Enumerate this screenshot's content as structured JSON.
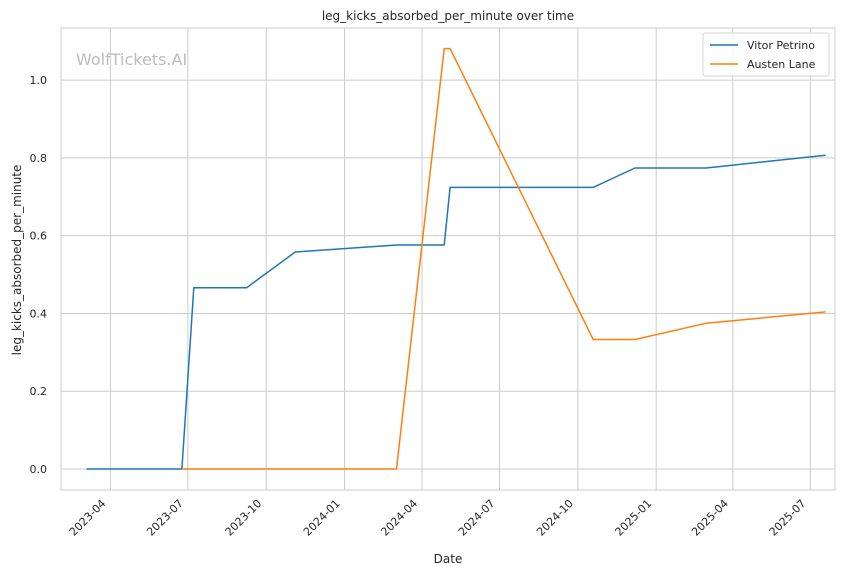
{
  "chart_data": {
    "type": "line",
    "title": "leg_kicks_absorbed_per_minute over time",
    "xlabel": "Date",
    "ylabel": "leg_kicks_absorbed_per_minute",
    "watermark": "WolfTickets.AI",
    "grid": true,
    "legend_position": "top-right",
    "x_range": [
      "2023-02-02",
      "2025-07-30"
    ],
    "ylim": [
      -0.054,
      1.134
    ],
    "x_ticks": [
      "2023-04",
      "2023-07",
      "2023-10",
      "2024-01",
      "2024-04",
      "2024-07",
      "2024-10",
      "2025-01",
      "2025-04",
      "2025-07"
    ],
    "y_ticks": [
      "0.0",
      "0.2",
      "0.4",
      "0.6",
      "0.8",
      "1.0"
    ],
    "series": [
      {
        "name": "Vitor Petrino",
        "color": "#1f77b4",
        "points": [
          {
            "x": "2023-03-04",
            "y": 0.0
          },
          {
            "x": "2023-06-24",
            "y": 0.0
          },
          {
            "x": "2023-07-08",
            "y": 0.466
          },
          {
            "x": "2023-09-08",
            "y": 0.466
          },
          {
            "x": "2023-11-04",
            "y": 0.558
          },
          {
            "x": "2024-03-02",
            "y": 0.576
          },
          {
            "x": "2024-04-27",
            "y": 0.576
          },
          {
            "x": "2024-05-04",
            "y": 0.724
          },
          {
            "x": "2024-10-19",
            "y": 0.724
          },
          {
            "x": "2024-12-07",
            "y": 0.774
          },
          {
            "x": "2025-03-01",
            "y": 0.774
          },
          {
            "x": "2025-07-19",
            "y": 0.807
          }
        ]
      },
      {
        "name": "Austen Lane",
        "color": "#ff7f0e",
        "points": [
          {
            "x": "2023-06-24",
            "y": 0.0
          },
          {
            "x": "2024-03-02",
            "y": 0.0
          },
          {
            "x": "2024-04-27",
            "y": 1.081
          },
          {
            "x": "2024-05-04",
            "y": 1.081
          },
          {
            "x": "2024-10-19",
            "y": 0.333
          },
          {
            "x": "2024-12-07",
            "y": 0.333
          },
          {
            "x": "2025-03-01",
            "y": 0.375
          },
          {
            "x": "2025-07-19",
            "y": 0.404
          }
        ]
      }
    ]
  }
}
